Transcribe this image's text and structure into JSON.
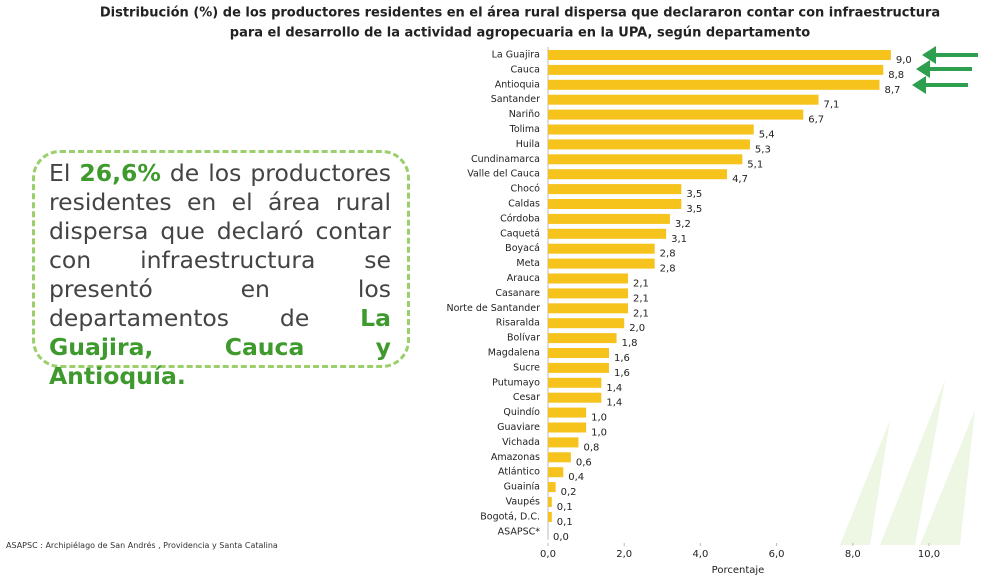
{
  "chart_data": {
    "type": "barh",
    "title": [
      "Distribución (%) de los productores residentes en el área rural dispersa que declararon contar con infraestructura",
      "para el desarrollo de la actividad agropecuaria en la UPA, según departamento"
    ],
    "categories": [
      "La Guajira",
      "Cauca",
      "Antioquia",
      "Santander",
      "Nariño",
      "Tolima",
      "Huila",
      "Cundinamarca",
      "Valle del Cauca",
      "Chocó",
      "Caldas",
      "Córdoba",
      "Caquetá",
      "Boyacá",
      "Meta",
      "Arauca",
      "Casanare",
      "Norte de Santander",
      "Risaralda",
      "Bolívar",
      "Magdalena",
      "Sucre",
      "Putumayo",
      "Cesar",
      "Quindío",
      "Guaviare",
      "Vichada",
      "Amazonas",
      "Atlántico",
      "Guainía",
      "Vaupés",
      "Bogotá, D.C.",
      "ASAPSC*"
    ],
    "values": [
      9.0,
      8.8,
      8.7,
      7.1,
      6.7,
      5.4,
      5.3,
      5.1,
      4.7,
      3.5,
      3.5,
      3.2,
      3.1,
      2.8,
      2.8,
      2.1,
      2.1,
      2.1,
      2.0,
      1.8,
      1.6,
      1.6,
      1.4,
      1.4,
      1.0,
      1.0,
      0.8,
      0.6,
      0.4,
      0.2,
      0.1,
      0.1,
      0.0
    ],
    "value_labels": [
      "9,0",
      "8,8",
      "8,7",
      "7,1",
      "6,7",
      "5,4",
      "5,3",
      "5,1",
      "4,7",
      "3,5",
      "3,5",
      "3,2",
      "3,1",
      "2,8",
      "2,8",
      "2,1",
      "2,1",
      "2,1",
      "2,0",
      "1,8",
      "1,6",
      "1,6",
      "1,4",
      "1,4",
      "1,0",
      "1,0",
      "0,8",
      "0,6",
      "0,4",
      "0,2",
      "0,1",
      "0,1",
      "0,0"
    ],
    "color": "#f6c21c",
    "xlim": [
      0,
      10
    ],
    "xticks": [
      {
        "value": 0,
        "label": "0,0"
      },
      {
        "value": 2,
        "label": "2,0"
      },
      {
        "value": 4,
        "label": "4,0"
      },
      {
        "value": 6,
        "label": "6,0"
      },
      {
        "value": 8,
        "label": "8,0"
      },
      {
        "value": 10,
        "label": "10,0"
      }
    ],
    "xlabel": "Porcentaje",
    "grid": false,
    "annotation": [
      {
        "text": "El ",
        "bold": false
      },
      {
        "text": "26,6%",
        "bold": true
      },
      {
        "text": " de los productores residentes en el área rural dispersa que declaró contar con infraestructura se presentó en los departamentos de ",
        "bold": false
      },
      {
        "text": "La Guajira, Cauca y Antioquía.",
        "bold": true
      }
    ],
    "footnote": "ASAPSC : Archipiélago de San Andrés , Providencia y Santa Catalina"
  }
}
